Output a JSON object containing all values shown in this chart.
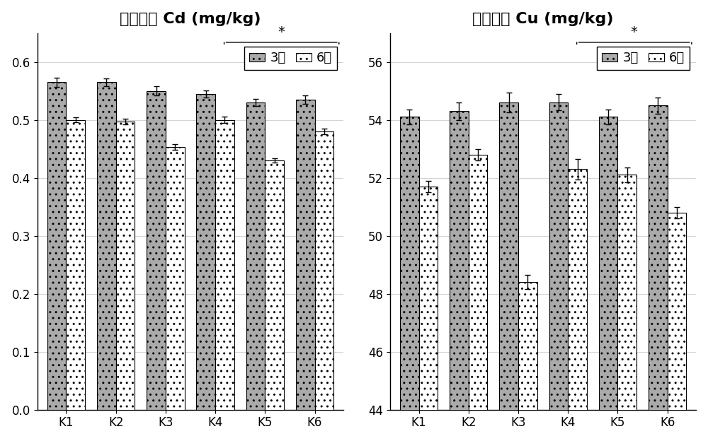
{
  "cd_title": "盆栽试验 Cd (mg/kg)",
  "cu_title": "盆栽试验 Cu (mg/kg)",
  "categories": [
    "K1",
    "K2",
    "K3",
    "K4",
    "K5",
    "K6"
  ],
  "cd_march": [
    0.565,
    0.565,
    0.55,
    0.545,
    0.53,
    0.535
  ],
  "cd_june": [
    0.5,
    0.497,
    0.453,
    0.5,
    0.43,
    0.48
  ],
  "cd_march_err": [
    0.008,
    0.007,
    0.008,
    0.006,
    0.006,
    0.007
  ],
  "cd_june_err": [
    0.004,
    0.005,
    0.005,
    0.005,
    0.004,
    0.005
  ],
  "cu_march": [
    54.1,
    54.3,
    54.6,
    54.6,
    54.1,
    54.5
  ],
  "cu_june": [
    51.7,
    52.8,
    48.4,
    52.3,
    52.1,
    50.8
  ],
  "cu_march_err": [
    0.25,
    0.3,
    0.35,
    0.28,
    0.25,
    0.28
  ],
  "cu_june_err": [
    0.2,
    0.2,
    0.25,
    0.35,
    0.25,
    0.2
  ],
  "cd_ylim": [
    0.0,
    0.65
  ],
  "cd_yticks": [
    0.0,
    0.1,
    0.2,
    0.3,
    0.4,
    0.5,
    0.6
  ],
  "cu_ylim": [
    44,
    57
  ],
  "cu_yticks": [
    44,
    46,
    48,
    50,
    52,
    54,
    56
  ],
  "march_color": "#aaaaaa",
  "june_color": "#ffffff",
  "bar_edge_color": "#000000",
  "legend_march": "3月",
  "legend_june": "6月",
  "background_color": "#ffffff",
  "bar_width": 0.38,
  "title_fontsize": 16,
  "tick_fontsize": 12,
  "legend_fontsize": 13,
  "bracket_star_fontsize": 14
}
